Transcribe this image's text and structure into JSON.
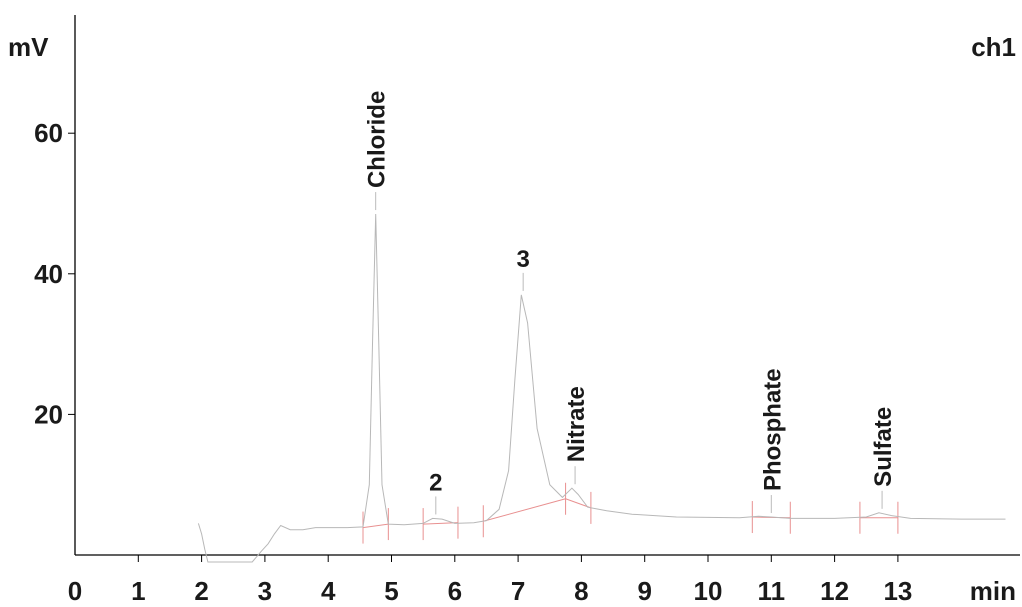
{
  "chart_data": {
    "type": "line",
    "title": "",
    "xlabel": "",
    "ylabel": "",
    "y_unit": "mV",
    "x_unit": "min",
    "channel": "ch1",
    "xlim": [
      0,
      14.7
    ],
    "ylim": [
      -1,
      77
    ],
    "x_ticks": [
      "0",
      "1",
      "2",
      "3",
      "4",
      "5",
      "6",
      "7",
      "8",
      "9",
      "10",
      "11",
      "12",
      "13"
    ],
    "y_ticks": [
      "20",
      "40",
      "60"
    ],
    "grid": false,
    "colors": {
      "signal": "#b8b8b8",
      "baseline": "#e89090",
      "axis": "#000000",
      "text": "#1a1a1a"
    },
    "series": [
      {
        "values": [
          [
            1.95,
            4.5
          ],
          [
            2.0,
            3.0
          ],
          [
            2.05,
            0.8
          ],
          [
            2.1,
            -1.0
          ],
          [
            2.8,
            -1.0
          ],
          [
            2.95,
            0.6
          ],
          [
            3.05,
            1.6
          ],
          [
            3.15,
            3.0
          ],
          [
            3.25,
            4.2
          ],
          [
            3.4,
            3.6
          ],
          [
            3.6,
            3.6
          ],
          [
            3.8,
            3.9
          ],
          [
            4.0,
            3.9
          ],
          [
            4.3,
            3.9
          ],
          [
            4.55,
            4.0
          ],
          [
            4.65,
            10.0
          ],
          [
            4.7,
            30.0
          ],
          [
            4.75,
            48.5
          ],
          [
            4.8,
            30.0
          ],
          [
            4.85,
            10.0
          ],
          [
            4.95,
            4.4
          ],
          [
            5.2,
            4.3
          ],
          [
            5.5,
            4.5
          ],
          [
            5.65,
            5.2
          ],
          [
            5.8,
            5.1
          ],
          [
            6.0,
            4.5
          ],
          [
            6.3,
            4.6
          ],
          [
            6.5,
            4.9
          ],
          [
            6.7,
            6.5
          ],
          [
            6.85,
            12.0
          ],
          [
            6.95,
            25.0
          ],
          [
            7.05,
            37.0
          ],
          [
            7.15,
            33.0
          ],
          [
            7.3,
            18.0
          ],
          [
            7.5,
            10.0
          ],
          [
            7.7,
            8.2
          ],
          [
            7.85,
            9.5
          ],
          [
            7.95,
            8.6
          ],
          [
            8.1,
            6.8
          ],
          [
            8.4,
            6.3
          ],
          [
            8.8,
            5.8
          ],
          [
            9.5,
            5.4
          ],
          [
            10.5,
            5.3
          ],
          [
            10.8,
            5.5
          ],
          [
            11.0,
            5.4
          ],
          [
            11.3,
            5.2
          ],
          [
            12.0,
            5.2
          ],
          [
            12.5,
            5.4
          ],
          [
            12.7,
            6.0
          ],
          [
            12.9,
            5.6
          ],
          [
            13.2,
            5.2
          ],
          [
            14.0,
            5.1
          ],
          [
            14.7,
            5.1
          ]
        ]
      }
    ],
    "baselines": [
      {
        "x": [
          4.55,
          4.95
        ],
        "y": [
          3.9,
          4.4
        ]
      },
      {
        "x": [
          5.5,
          6.05
        ],
        "y": [
          4.4,
          4.6
        ]
      },
      {
        "x": [
          6.45,
          7.75
        ],
        "y": [
          4.8,
          8.0
        ]
      },
      {
        "x": [
          7.75,
          8.15
        ],
        "y": [
          8.0,
          6.7
        ]
      },
      {
        "x": [
          10.7,
          11.3
        ],
        "y": [
          5.4,
          5.3
        ]
      },
      {
        "x": [
          12.4,
          13.0
        ],
        "y": [
          5.3,
          5.3
        ]
      }
    ],
    "markers": [
      {
        "x": 4.55,
        "y": 3.9
      },
      {
        "x": 4.95,
        "y": 4.4
      },
      {
        "x": 5.5,
        "y": 4.4
      },
      {
        "x": 6.05,
        "y": 4.6
      },
      {
        "x": 6.45,
        "y": 4.8
      },
      {
        "x": 7.75,
        "y": 8.0
      },
      {
        "x": 8.15,
        "y": 6.7
      },
      {
        "x": 10.7,
        "y": 5.4
      },
      {
        "x": 11.3,
        "y": 5.3
      },
      {
        "x": 12.4,
        "y": 5.3
      },
      {
        "x": 13.0,
        "y": 5.3
      }
    ],
    "peaks": [
      {
        "label": "Chloride",
        "rt": 4.75,
        "height": 48.5,
        "vertical": true
      },
      {
        "label": "2",
        "rt": 5.7,
        "height": 5.2,
        "vertical": false
      },
      {
        "label": "3",
        "rt": 7.08,
        "height": 37.0,
        "vertical": false
      },
      {
        "label": "Nitrate",
        "rt": 7.9,
        "height": 9.5,
        "vertical": true
      },
      {
        "label": "Phosphate",
        "rt": 11.0,
        "height": 5.4,
        "vertical": true
      },
      {
        "label": "Sulfate",
        "rt": 12.75,
        "height": 6.0,
        "vertical": true
      }
    ]
  }
}
